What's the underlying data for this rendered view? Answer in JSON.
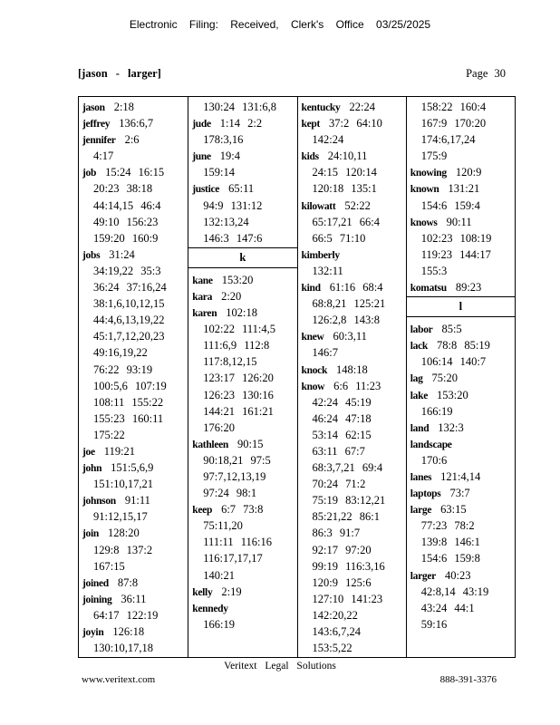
{
  "header": {
    "stamp": "Electronic Filing: Received, Clerk's Office 03/25/2025",
    "range": "[jason - larger]",
    "page": "Page 30"
  },
  "columns": [
    [
      {
        "term": "jason",
        "lines": [
          "2:18"
        ]
      },
      {
        "term": "jeffrey",
        "lines": [
          "136:6,7"
        ]
      },
      {
        "term": "jennifer",
        "lines": [
          "2:6",
          "4:17"
        ]
      },
      {
        "term": "job",
        "lines": [
          "15:24 16:15",
          "20:23 38:18",
          "44:14,15 46:4",
          "49:10 156:23",
          "159:20 160:9"
        ]
      },
      {
        "term": "jobs",
        "lines": [
          "31:24",
          "34:19,22 35:3",
          "36:24 37:16,24",
          "38:1,6,10,12,15",
          "44:4,6,13,19,22",
          "45:1,7,12,20,23",
          "49:16,19,22",
          "76:22 93:19",
          "100:5,6 107:19",
          "108:11 155:22",
          "155:23 160:11",
          "175:22"
        ]
      },
      {
        "term": "joe",
        "lines": [
          "119:21"
        ]
      },
      {
        "term": "john",
        "lines": [
          "151:5,6,9",
          "151:10,17,21"
        ]
      },
      {
        "term": "johnson",
        "lines": [
          "91:11",
          "91:12,15,17"
        ]
      },
      {
        "term": "join",
        "lines": [
          "128:20",
          "129:8 137:2",
          "167:15"
        ]
      },
      {
        "term": "joined",
        "lines": [
          "87:8"
        ]
      },
      {
        "term": "joining",
        "lines": [
          "36:11",
          "64:17 122:19"
        ]
      },
      {
        "term": "joyin",
        "lines": [
          "126:18",
          "130:10,17,18"
        ]
      }
    ],
    [
      {
        "term": "",
        "lines": [
          "130:24 131:6,8"
        ]
      },
      {
        "term": "jude",
        "lines": [
          "1:14 2:2",
          "178:3,16"
        ]
      },
      {
        "term": "june",
        "lines": [
          "19:4",
          "159:14"
        ]
      },
      {
        "term": "justice",
        "lines": [
          "65:11",
          "94:9 131:12",
          "132:13,24",
          "146:3 147:6"
        ]
      },
      {
        "header": "k"
      },
      {
        "term": "kane",
        "lines": [
          "153:20"
        ]
      },
      {
        "term": "kara",
        "lines": [
          "2:20"
        ]
      },
      {
        "term": "karen",
        "lines": [
          "102:18",
          "102:22 111:4,5",
          "111:6,9 112:8",
          "117:8,12,15",
          "123:17 126:20",
          "126:23 130:16",
          "144:21 161:21",
          "176:20"
        ]
      },
      {
        "term": "kathleen",
        "lines": [
          "90:15",
          "90:18,21 97:5",
          "97:7,12,13,19",
          "97:24 98:1"
        ]
      },
      {
        "term": "keep",
        "lines": [
          "6:7 73:8",
          "75:11,20",
          "111:11 116:16",
          "116:17,17,17",
          "140:21"
        ]
      },
      {
        "term": "kelly",
        "lines": [
          "2:19"
        ]
      },
      {
        "term": "kennedy",
        "lines": [
          "",
          "166:19"
        ]
      }
    ],
    [
      {
        "term": "kentucky",
        "lines": [
          "22:24"
        ]
      },
      {
        "term": "kept",
        "lines": [
          "37:2 64:10",
          "142:24"
        ]
      },
      {
        "term": "kids",
        "lines": [
          "24:10,11",
          "24:15 120:14",
          "120:18 135:1"
        ]
      },
      {
        "term": "kilowatt",
        "lines": [
          "52:22",
          "65:17,21 66:4",
          "66:5 71:10"
        ]
      },
      {
        "term": "kimberly",
        "lines": [
          "",
          "132:11"
        ]
      },
      {
        "term": "kind",
        "lines": [
          "61:16 68:4",
          "68:8,21 125:21",
          "126:2,8 143:8"
        ]
      },
      {
        "term": "knew",
        "lines": [
          "60:3,11",
          "146:7"
        ]
      },
      {
        "term": "knock",
        "lines": [
          "148:18"
        ]
      },
      {
        "term": "know",
        "lines": [
          "6:6 11:23",
          "42:24 45:19",
          "46:24 47:18",
          "53:14 62:15",
          "63:11 67:7",
          "68:3,7,21 69:4",
          "70:24 71:2",
          "75:19 83:12,21",
          "85:21,22 86:1",
          "86:3 91:7",
          "92:17 97:20",
          "99:19 116:3,16",
          "120:9 125:6",
          "127:10 141:23",
          "142:20,22",
          "143:6,7,24",
          "153:5,22"
        ]
      }
    ],
    [
      {
        "term": "",
        "lines": [
          "158:22 160:4",
          "167:9 170:20",
          "174:6,17,24",
          "175:9"
        ]
      },
      {
        "term": "knowing",
        "lines": [
          "120:9"
        ]
      },
      {
        "term": "known",
        "lines": [
          "131:21",
          "154:6 159:4"
        ]
      },
      {
        "term": "knows",
        "lines": [
          "90:11",
          "102:23 108:19",
          "119:23 144:17",
          "155:3"
        ]
      },
      {
        "term": "komatsu",
        "lines": [
          "89:23"
        ]
      },
      {
        "header": "l"
      },
      {
        "term": "labor",
        "lines": [
          "85:5"
        ]
      },
      {
        "term": "lack",
        "lines": [
          "78:8 85:19",
          "106:14 140:7"
        ]
      },
      {
        "term": "lag",
        "lines": [
          "75:20"
        ]
      },
      {
        "term": "lake",
        "lines": [
          "153:20",
          "166:19"
        ]
      },
      {
        "term": "land",
        "lines": [
          "132:3"
        ]
      },
      {
        "term": "landscape",
        "lines": [
          "",
          "170:6"
        ]
      },
      {
        "term": "lanes",
        "lines": [
          "121:4,14"
        ]
      },
      {
        "term": "laptops",
        "lines": [
          "73:7"
        ]
      },
      {
        "term": "large",
        "lines": [
          "63:15",
          "77:23 78:2",
          "139:8 146:1",
          "154:6 159:8"
        ]
      },
      {
        "term": "larger",
        "lines": [
          "40:23",
          "42:8,14 43:19",
          "43:24 44:1",
          "59:16"
        ]
      }
    ]
  ],
  "footer": {
    "company": "Veritext Legal Solutions",
    "website": "www.veritext.com",
    "phone": "888-391-3376"
  }
}
